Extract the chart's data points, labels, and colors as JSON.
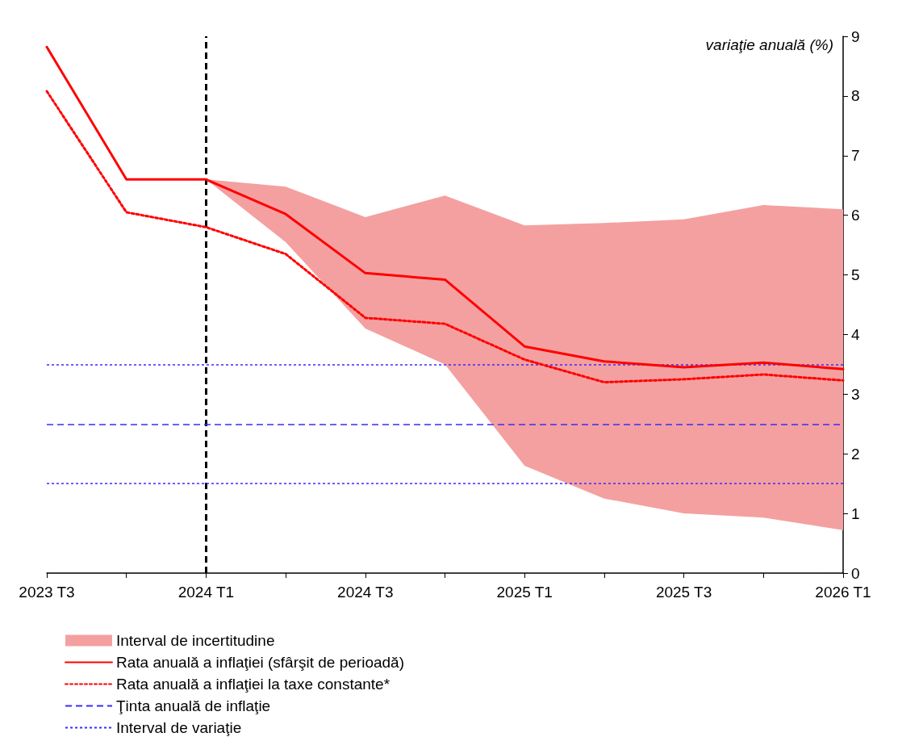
{
  "chart_data": {
    "type": "line",
    "ylabel": "variaţie anuală (%)",
    "categories": [
      "2023 T3",
      null,
      "2024 T1",
      null,
      "2024 T3",
      null,
      "2025 T1",
      null,
      "2025 T3",
      null,
      "2026 T1"
    ],
    "ylim": [
      0,
      9
    ],
    "yticks": [
      0,
      1,
      2,
      3,
      4,
      5,
      6,
      7,
      8,
      9
    ],
    "series": [
      {
        "name": "Interval de incertitudine",
        "type": "area",
        "color": "#f4a0a0",
        "values": [
          null,
          null,
          null,
          null,
          null,
          null,
          null,
          null,
          null,
          null,
          null
        ],
        "lower": [
          null,
          null,
          6.6,
          5.55,
          4.1,
          3.5,
          1.8,
          1.25,
          1.0,
          0.93,
          0.72
        ],
        "upper": [
          null,
          null,
          6.6,
          6.48,
          5.97,
          6.33,
          5.83,
          5.87,
          5.93,
          6.17,
          6.1
        ]
      },
      {
        "name": "Rata anuală a inflaţiei (sfârşit de perioadă)",
        "color": "#ff0000",
        "line_style": "solid",
        "values": [
          8.82,
          6.6,
          6.6,
          6.02,
          5.03,
          4.92,
          3.8,
          3.55,
          3.45,
          3.53,
          3.42
        ]
      },
      {
        "name": "Rata anuală a inflaţiei la taxe constante*",
        "color": "#ff0000",
        "line_style": "dotted",
        "values": [
          8.08,
          6.05,
          5.8,
          5.35,
          4.28,
          4.18,
          3.58,
          3.2,
          3.25,
          3.33,
          3.23
        ]
      }
    ],
    "ref_lines": [
      {
        "axis": "x",
        "value": "2024 T1",
        "color": "#000000",
        "line_style": "dashed"
      },
      {
        "axis": "y",
        "value": 2.5,
        "label": "Ţinta anuală de inflaţie",
        "color": "#3b2bff",
        "line_style": "dashed"
      },
      {
        "axis": "y",
        "value": 3.5,
        "label": "Interval de variaţie",
        "color": "#3b2bff",
        "line_style": "dotted"
      },
      {
        "axis": "y",
        "value": 1.5,
        "color": "#3b2bff",
        "line_style": "dotted"
      }
    ],
    "marker": "none",
    "grid": false,
    "legend": "bottom left"
  }
}
